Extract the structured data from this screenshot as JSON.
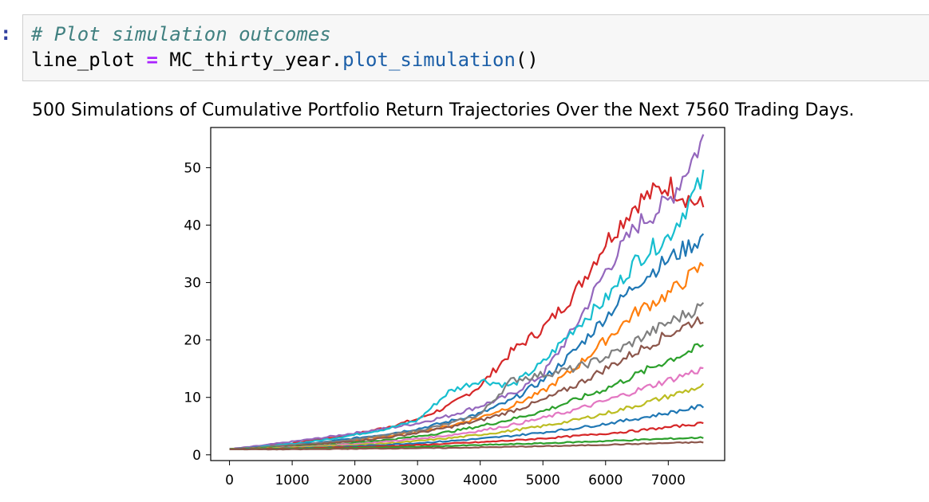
{
  "cell": {
    "prompt": ":",
    "code": {
      "comment": "# Plot simulation outcomes",
      "var": "line_plot",
      "op": "=",
      "obj": "MC_thirty_year.",
      "method": "plot_simulation",
      "parens": "()"
    }
  },
  "output": {
    "title": "500 Simulations of Cumulative Portfolio Return Trajectories Over the Next 7560 Trading Days."
  },
  "colors": {
    "palette": [
      "#1f77b4",
      "#ff7f0e",
      "#2ca02c",
      "#d62728",
      "#9467bd",
      "#8c564b",
      "#e377c2",
      "#7f7f7f",
      "#bcbd22",
      "#17becf"
    ]
  },
  "chart_data": {
    "type": "line",
    "title": "500 Simulations of Cumulative Portfolio Return Trajectories Over the Next 7560 Trading Days.",
    "xlabel": "",
    "ylabel": "",
    "xlim": [
      -300,
      7900
    ],
    "ylim": [
      -1,
      57
    ],
    "x_ticks": [
      0,
      1000,
      2000,
      3000,
      4000,
      5000,
      6000,
      7000
    ],
    "y_ticks": [
      0,
      10,
      20,
      30,
      40,
      50
    ],
    "x": [
      0,
      500,
      1000,
      1500,
      2000,
      2500,
      3000,
      3500,
      4000,
      4500,
      5000,
      5500,
      6000,
      6500,
      7000,
      7560
    ],
    "num_simulations": 500,
    "num_trading_days": 7560,
    "series": [
      {
        "color": "#d62728",
        "values": [
          1,
          1.5,
          2.0,
          2.8,
          3.6,
          4.8,
          6.2,
          8.5,
          12.0,
          18.0,
          22.0,
          28.0,
          37.0,
          44.0,
          47.0,
          43.0
        ]
      },
      {
        "color": "#9467bd",
        "values": [
          1,
          1.6,
          2.3,
          3.0,
          3.8,
          4.6,
          5.5,
          6.8,
          8.5,
          10.5,
          14.0,
          22.0,
          32.0,
          40.0,
          44.0,
          55.0
        ]
      },
      {
        "color": "#17becf",
        "values": [
          1,
          1.4,
          1.9,
          2.6,
          3.5,
          4.5,
          6.0,
          11.0,
          13.0,
          12.0,
          16.0,
          22.0,
          27.0,
          34.0,
          38.0,
          48.0
        ]
      },
      {
        "color": "#1f77b4",
        "values": [
          1,
          1.3,
          1.7,
          2.2,
          2.9,
          3.6,
          4.5,
          5.8,
          7.2,
          9.5,
          13.0,
          18.0,
          24.0,
          30.0,
          34.0,
          38.0
        ]
      },
      {
        "color": "#ff7f0e",
        "values": [
          1,
          1.2,
          1.6,
          2.0,
          2.6,
          3.2,
          4.0,
          5.0,
          6.5,
          8.5,
          11.0,
          15.0,
          20.0,
          25.0,
          28.0,
          33.0
        ]
      },
      {
        "color": "#7f7f7f",
        "values": [
          1,
          1.3,
          1.7,
          2.1,
          2.7,
          3.4,
          4.2,
          5.4,
          7.0,
          13.0,
          14.0,
          15.0,
          17.0,
          20.0,
          23.0,
          26.0
        ]
      },
      {
        "color": "#8c564b",
        "values": [
          1,
          1.2,
          1.5,
          1.9,
          2.4,
          3.0,
          3.8,
          4.8,
          6.0,
          7.6,
          9.5,
          12.0,
          15.0,
          18.0,
          21.0,
          24.0
        ]
      },
      {
        "color": "#2ca02c",
        "values": [
          1,
          1.15,
          1.4,
          1.7,
          2.1,
          2.6,
          3.2,
          4.0,
          5.0,
          6.2,
          7.6,
          9.5,
          11.5,
          14.0,
          16.5,
          19.0
        ]
      },
      {
        "color": "#e377c2",
        "values": [
          1,
          1.1,
          1.3,
          1.6,
          1.9,
          2.3,
          2.8,
          3.4,
          4.2,
          5.2,
          6.4,
          7.8,
          9.4,
          11.2,
          13.0,
          15.0
        ]
      },
      {
        "color": "#bcbd22",
        "values": [
          1,
          1.1,
          1.25,
          1.45,
          1.7,
          2.0,
          2.4,
          2.9,
          3.5,
          4.2,
          5.0,
          6.0,
          7.2,
          8.6,
          10.2,
          12.0
        ]
      },
      {
        "color": "#1f77b4",
        "values": [
          1,
          1.05,
          1.15,
          1.3,
          1.5,
          1.75,
          2.05,
          2.4,
          2.8,
          3.3,
          3.9,
          4.6,
          5.4,
          6.3,
          7.3,
          8.5
        ]
      },
      {
        "color": "#d62728",
        "values": [
          1,
          1.05,
          1.1,
          1.2,
          1.35,
          1.5,
          1.7,
          1.95,
          2.2,
          2.5,
          2.85,
          3.25,
          3.7,
          4.2,
          4.8,
          5.5
        ]
      },
      {
        "color": "#2ca02c",
        "values": [
          1,
          1.0,
          1.05,
          1.1,
          1.2,
          1.3,
          1.4,
          1.55,
          1.7,
          1.85,
          2.0,
          2.2,
          2.4,
          2.6,
          2.8,
          3.0
        ]
      },
      {
        "color": "#8c564b",
        "values": [
          1,
          0.95,
          0.95,
          1.0,
          1.05,
          1.1,
          1.15,
          1.2,
          1.3,
          1.4,
          1.5,
          1.6,
          1.75,
          1.9,
          2.05,
          2.2
        ]
      }
    ]
  }
}
